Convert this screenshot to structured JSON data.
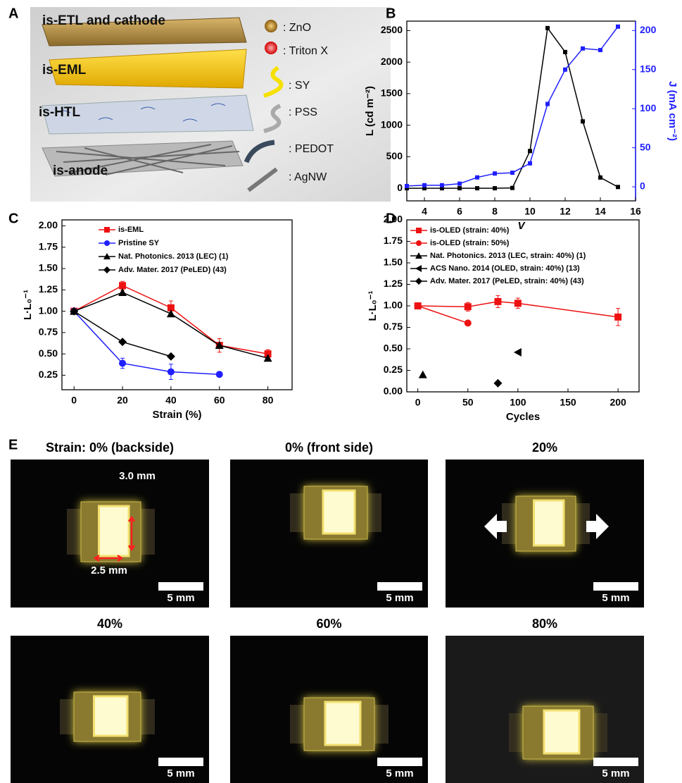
{
  "panel_labels": [
    "A",
    "B",
    "C",
    "D",
    "E"
  ],
  "schematic": {
    "layers": [
      "is-ETL and cathode",
      "is-EML",
      "is-HTL",
      "is-anode"
    ],
    "legend": [
      ": ZnO",
      ": Triton X",
      ": SY",
      ": PSS",
      ": PEDOT",
      ": AgNW"
    ]
  },
  "chart_data": [
    {
      "type": "line",
      "x_label": "V",
      "y_label": "L (cd m⁻²)",
      "y2_label": "J (mA cm⁻²)",
      "xlim": [
        3,
        16
      ],
      "xticks": [
        4,
        6,
        8,
        10,
        12,
        14,
        16
      ],
      "ylim": [
        -200,
        2650
      ],
      "yticks": [
        0,
        500,
        1000,
        1500,
        2000,
        2500
      ],
      "y2lim": [
        -18,
        212
      ],
      "y2ticks": [
        0,
        50,
        100,
        150,
        200
      ],
      "y2color": "#1f1fff",
      "series": [
        {
          "color": "#000000",
          "marker": "square",
          "x": [
            3,
            4,
            5,
            6,
            7,
            8,
            9,
            10,
            11,
            12,
            13,
            14,
            15
          ],
          "values": [
            0,
            0,
            0,
            0,
            0,
            0,
            5,
            590,
            2540,
            2160,
            1060,
            170,
            20
          ]
        },
        {
          "color": "#1f1fff",
          "marker": "square",
          "axis": "y2",
          "x": [
            3,
            4,
            5,
            6,
            7,
            8,
            9,
            10,
            11,
            12,
            13,
            14,
            15
          ],
          "values": [
            1,
            2,
            2,
            4,
            12,
            17,
            18,
            30,
            106,
            150,
            177,
            175,
            205
          ]
        }
      ]
    },
    {
      "type": "line",
      "x_label": "Strain (%)",
      "y_label": "L·L₀⁻¹",
      "xlim": [
        -5,
        90
      ],
      "xticks": [
        0,
        20,
        40,
        60,
        80
      ],
      "ylim": [
        0.08,
        2.07
      ],
      "yticks": [
        {
          "value": 0.25,
          "label": "0.25"
        },
        {
          "value": 0.5,
          "label": "0.50"
        },
        {
          "value": 0.75,
          "label": "0.75"
        },
        {
          "value": 1.0,
          "label": "1.00"
        },
        {
          "value": 1.25,
          "label": "1.25"
        },
        {
          "value": 1.5,
          "label": "1.50"
        },
        {
          "value": 1.75,
          "label": "1.75"
        },
        {
          "value": 2.0,
          "label": "2.00"
        }
      ],
      "series": [
        {
          "name": "is-EML",
          "color": "#ee1111",
          "marker": "square",
          "x": [
            0,
            20,
            40,
            60,
            80
          ],
          "values": [
            1.0,
            1.3,
            1.04,
            0.6,
            0.5
          ],
          "errors": [
            0.02,
            0.05,
            0.08,
            0.08,
            0.05
          ]
        },
        {
          "name": "Pristine SY",
          "color": "#1f1fff",
          "marker": "circle",
          "x": [
            0,
            20,
            40,
            60
          ],
          "values": [
            1.0,
            0.39,
            0.29,
            0.26
          ],
          "errors": [
            0.02,
            0.06,
            0.09,
            0.02
          ]
        },
        {
          "name": "Nat. Photonics. 2013 (LEC) (1)",
          "color": "#000000",
          "marker": "triangle",
          "x": [
            0,
            20,
            40,
            60,
            80
          ],
          "values": [
            1.0,
            1.22,
            0.97,
            0.6,
            0.45
          ]
        },
        {
          "name": "Adv. Mater. 2017 (PeLED) (43)",
          "color": "#000000",
          "marker": "diamond",
          "x": [
            0,
            20,
            40
          ],
          "values": [
            1.0,
            0.64,
            0.47
          ]
        }
      ]
    },
    {
      "type": "line",
      "x_label": "Cycles",
      "y_label": "L·L₀⁻¹",
      "xlim": [
        -11,
        221
      ],
      "xticks": [
        0,
        50,
        100,
        150,
        200
      ],
      "ylim": [
        0,
        2.0
      ],
      "yticks": [
        {
          "value": 0,
          "label": "0.00"
        },
        {
          "value": 0.25,
          "label": "0.25"
        },
        {
          "value": 0.5,
          "label": "0.50"
        },
        {
          "value": 0.75,
          "label": "0.75"
        },
        {
          "value": 1.0,
          "label": "1.00"
        },
        {
          "value": 1.25,
          "label": "1.25"
        },
        {
          "value": 1.5,
          "label": "1.50"
        },
        {
          "value": 1.75,
          "label": "1.75"
        },
        {
          "value": 2.0,
          "label": "2.00"
        }
      ],
      "series": [
        {
          "name": "is-OLED (strain: 40%)",
          "color": "#ee1111",
          "marker": "square",
          "x": [
            0,
            50,
            80,
            100,
            200
          ],
          "values": [
            1.0,
            0.99,
            1.05,
            1.03,
            0.87
          ],
          "errors": [
            0.02,
            0.05,
            0.07,
            0.06,
            0.1
          ]
        },
        {
          "name": "is-OLED (strain: 50%)",
          "color": "#ee1111",
          "marker": "circle",
          "x": [
            0,
            50
          ],
          "values": [
            1.0,
            0.8
          ]
        },
        {
          "name": "Nat. Photonics. 2013 (LEC, strain: 40%) (1)",
          "color": "#000000",
          "marker": "triangle",
          "x": [
            5
          ],
          "values": [
            0.2
          ]
        },
        {
          "name": "ACS Nano. 2014 (OLED, strain: 40%) (13)",
          "color": "#000000",
          "marker": "triangle-left",
          "x": [
            100
          ],
          "values": [
            0.46
          ]
        },
        {
          "name": "Adv. Mater. 2017 (PeLED, strain: 40%) (43)",
          "color": "#000000",
          "marker": "diamond",
          "x": [
            80
          ],
          "values": [
            0.1
          ]
        }
      ]
    }
  ],
  "photos": [
    {
      "label": "Strain: 0% (backside)",
      "scale_bar": "5 mm",
      "annotations": [
        "3.0 mm",
        "2.5 mm"
      ]
    },
    {
      "label": "0% (front side)",
      "scale_bar": "5 mm"
    },
    {
      "label": "20%",
      "scale_bar": "5 mm"
    },
    {
      "label": "40%",
      "scale_bar": "5 mm"
    },
    {
      "label": "60%",
      "scale_bar": "5 mm"
    },
    {
      "label": "80%",
      "scale_bar": "5 mm"
    }
  ]
}
